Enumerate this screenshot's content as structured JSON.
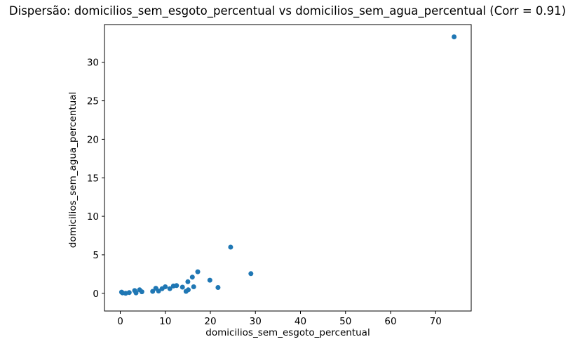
{
  "chart_data": {
    "type": "scatter",
    "title": "Dispersão: domicilios_sem_esgoto_percentual vs domicilios_sem_agua_percentual (Corr = 0.91)",
    "xlabel": "domicilios_sem_esgoto_percentual",
    "ylabel": "domicilios_sem_agua_percentual",
    "correlation": "0.91",
    "xlim": [
      -3.5,
      77.9
    ],
    "ylim": [
      -2.3,
      34.9
    ],
    "xticks": [
      0,
      10,
      20,
      30,
      40,
      50,
      60,
      70
    ],
    "yticks": [
      0,
      5,
      10,
      15,
      20,
      25,
      30
    ],
    "grid": false,
    "legend": "none",
    "marker_color": "#1f77b4",
    "axis_color": "#000000",
    "background_color": "#ffffff",
    "points": [
      {
        "x": 0.3,
        "y": 0.15
      },
      {
        "x": 0.5,
        "y": 0.05
      },
      {
        "x": 1.2,
        "y": 0.0
      },
      {
        "x": 2.0,
        "y": 0.1
      },
      {
        "x": 3.2,
        "y": 0.35
      },
      {
        "x": 3.5,
        "y": 0.05
      },
      {
        "x": 4.3,
        "y": 0.45
      },
      {
        "x": 4.8,
        "y": 0.2
      },
      {
        "x": 7.2,
        "y": 0.25
      },
      {
        "x": 7.9,
        "y": 0.65
      },
      {
        "x": 8.5,
        "y": 0.3
      },
      {
        "x": 9.3,
        "y": 0.6
      },
      {
        "x": 10.0,
        "y": 0.85
      },
      {
        "x": 11.0,
        "y": 0.6
      },
      {
        "x": 11.8,
        "y": 0.95
      },
      {
        "x": 12.5,
        "y": 1.0
      },
      {
        "x": 13.8,
        "y": 0.8
      },
      {
        "x": 14.6,
        "y": 0.25
      },
      {
        "x": 15.0,
        "y": 1.5
      },
      {
        "x": 15.1,
        "y": 0.45
      },
      {
        "x": 16.0,
        "y": 2.1
      },
      {
        "x": 16.3,
        "y": 0.85
      },
      {
        "x": 17.2,
        "y": 2.8
      },
      {
        "x": 19.9,
        "y": 1.7
      },
      {
        "x": 21.7,
        "y": 0.75
      },
      {
        "x": 24.5,
        "y": 6.0
      },
      {
        "x": 29.0,
        "y": 2.55
      },
      {
        "x": 74.1,
        "y": 33.3
      }
    ]
  }
}
